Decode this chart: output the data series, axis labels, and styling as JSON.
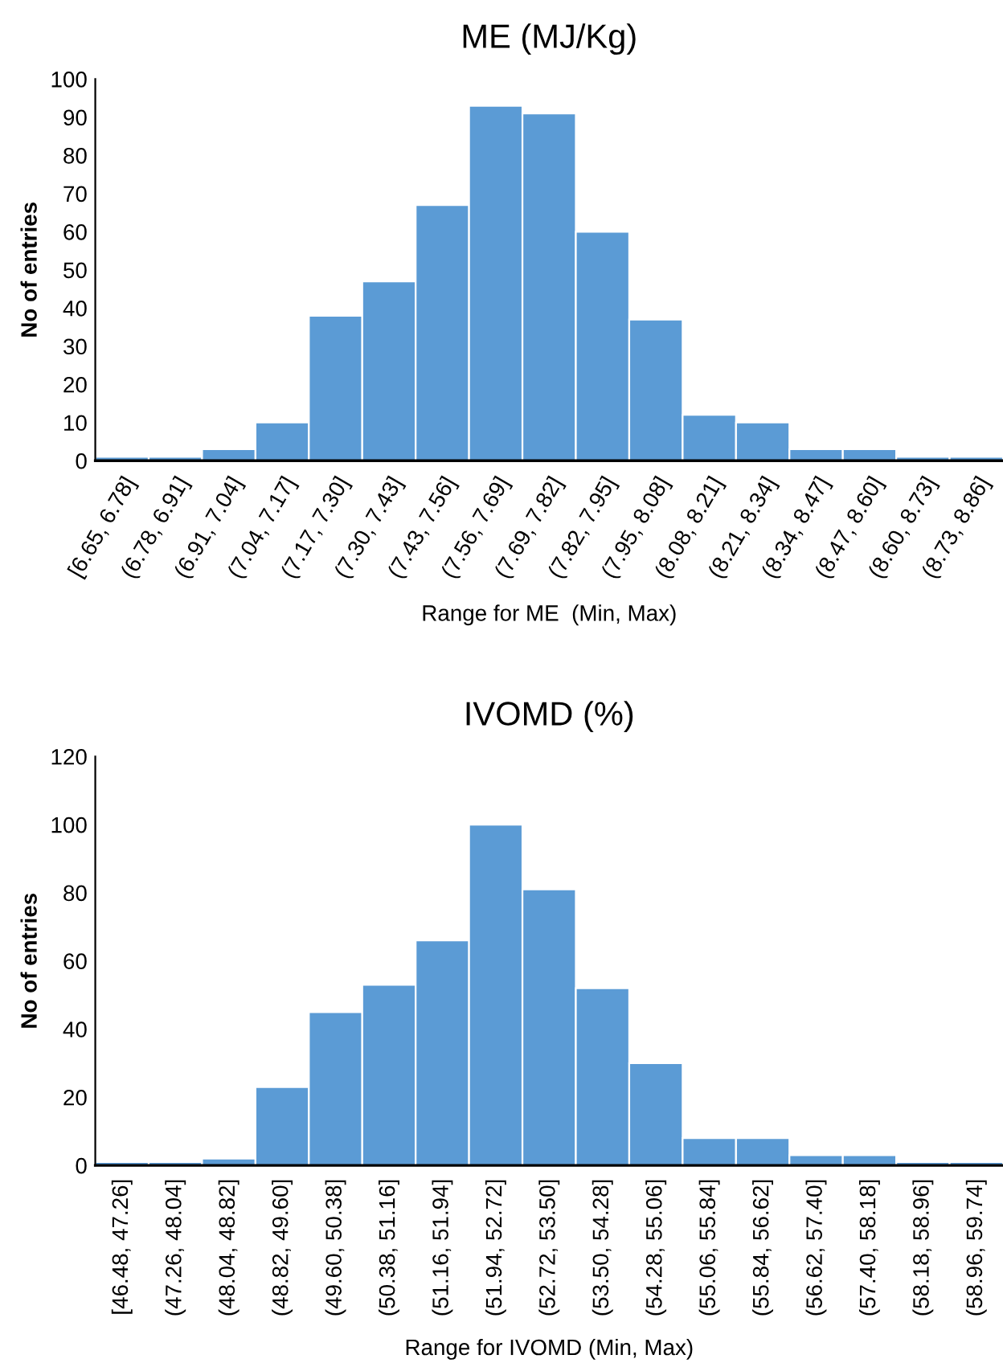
{
  "chart_data": [
    {
      "type": "bar",
      "title": "ME (MJ/Kg)",
      "xlabel": "Range for ME  (Min, Max)",
      "ylabel": "No of entries",
      "categories": [
        "[6.65, 6.78]",
        "(6.78, 6.91]",
        "(6.91, 7.04]",
        "(7.04, 7.17]",
        "(7.17, 7.30]",
        "(7.30, 7.43]",
        "(7.43, 7.56]",
        "(7.56, 7.69]",
        "(7.69, 7.82]",
        "(7.82, 7.95]",
        "(7.95, 8.08]",
        "(8.08, 8.21]",
        "(8.21, 8.34]",
        "(8.34, 8.47]",
        "(8.47, 8.60]",
        "(8.60, 8.73]",
        "(8.73, 8.86]"
      ],
      "values": [
        1,
        1,
        3,
        10,
        38,
        47,
        67,
        93,
        91,
        60,
        37,
        12,
        10,
        3,
        3,
        1,
        1
      ],
      "color": "#5b9bd5",
      "ylim": [
        0,
        100
      ],
      "yticks": [
        0,
        10,
        20,
        30,
        40,
        50,
        60,
        70,
        80,
        90,
        100
      ],
      "grid": false,
      "legend": false
    },
    {
      "type": "bar",
      "title": "IVOMD (%)",
      "xlabel": "Range for IVOMD (Min, Max)",
      "ylabel": "No of entries",
      "categories": [
        "[46.48, 47.26]",
        "(47.26, 48.04]",
        "(48.04, 48.82]",
        "(48.82, 49.60]",
        "(49.60, 50.38]",
        "(50.38, 51.16]",
        "(51.16, 51.94]",
        "(51.94, 52.72]",
        "(52.72, 53.50]",
        "(53.50, 54.28]",
        "(54.28, 55.06]",
        "(55.06, 55.84]",
        "(55.84, 56.62]",
        "(56.62, 57.40]",
        "(57.40, 58.18]",
        "(58.18, 58.96]",
        "(58.96, 59.74]"
      ],
      "values": [
        1,
        1,
        2,
        23,
        45,
        53,
        66,
        100,
        81,
        52,
        30,
        8,
        8,
        3,
        3,
        1,
        1
      ],
      "color": "#5b9bd5",
      "ylim": [
        0,
        120
      ],
      "yticks": [
        0,
        20,
        40,
        60,
        80,
        100,
        120
      ],
      "grid": false,
      "legend": false
    }
  ]
}
